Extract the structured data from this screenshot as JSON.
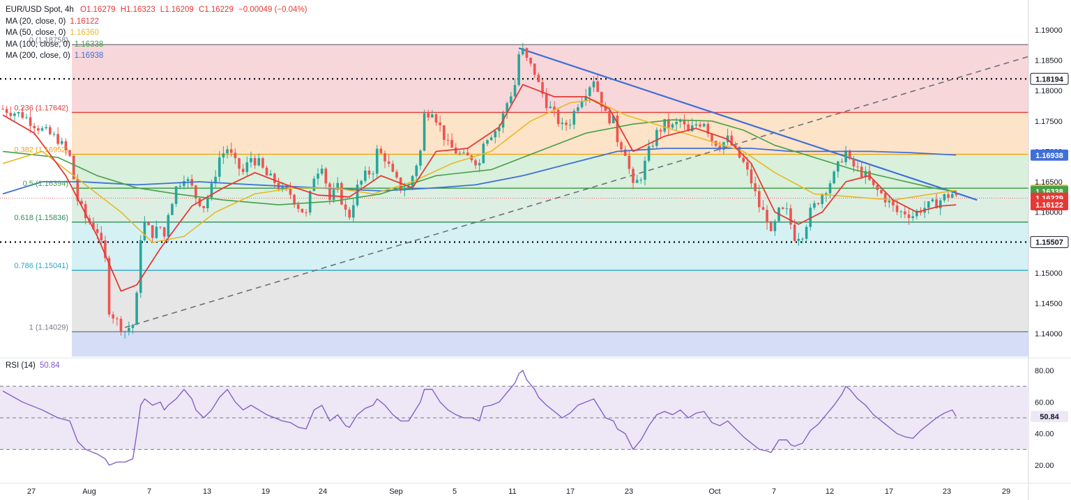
{
  "header": {
    "symbol": "EUR/USD Spot, 4h",
    "open": "O1.16279",
    "high": "H1.16323",
    "low": "L1.16209",
    "close": "C1.16229",
    "change": "−0.00049 (−0.04%)"
  },
  "indicators": [
    {
      "label": "MA (20, close, 0)",
      "value": "1.16122",
      "color": "#e53935"
    },
    {
      "label": "MA (50, close, 0)",
      "value": "1.16360",
      "color": "#e8b923"
    },
    {
      "label": "MA (100, close, 0)",
      "value": "1.16338",
      "color": "#43a047"
    },
    {
      "label": "MA (200, close, 0)",
      "value": "1.16938",
      "color": "#3f6fd8"
    }
  ],
  "rsi": {
    "label": "RSI (14)",
    "value": "50.84",
    "color": "#7e57c2"
  },
  "chart_data": {
    "type": "candlestick",
    "title": "EUR/USD Spot, 4h",
    "price_axis": {
      "ylim": [
        1.137,
        1.1915
      ],
      "ticks": [
        "1.19000",
        "1.18500",
        "1.18000",
        "1.17500",
        "1.17000",
        "1.16500",
        "1.16000",
        "1.15500",
        "1.15000",
        "1.14500",
        "1.14000"
      ]
    },
    "time_axis": {
      "labels": [
        "27",
        "Aug",
        "7",
        "13",
        "19",
        "24",
        "Sep",
        "5",
        "11",
        "17",
        "23",
        "Oct",
        "7",
        "12",
        "17",
        "23",
        "29"
      ]
    },
    "fibonacci": [
      {
        "label": "0 (1.18758)",
        "level": 1.18758,
        "color": "#787b86"
      },
      {
        "label": "0.236 (1.17642)",
        "level": 1.17642,
        "color": "#e53935"
      },
      {
        "label": "0.382 (1.16952)",
        "level": 1.16952,
        "color": "#f0a30a"
      },
      {
        "label": "0.5 (1.16394)",
        "level": 1.16394,
        "color": "#43a047"
      },
      {
        "label": "0.618 (1.15836)",
        "level": 1.15836,
        "color": "#2e8b57"
      },
      {
        "label": "0.786 (1.15041)",
        "level": 1.15041,
        "color": "#26a8c8"
      },
      {
        "label": "1 (1.14029)",
        "level": 1.14029,
        "color": "#787b86"
      }
    ],
    "horizontal_levels": [
      {
        "label": "1.18194",
        "level": 1.18194
      },
      {
        "label": "1.15507",
        "level": 1.15507
      }
    ],
    "price_badges": [
      {
        "label": "1.18194",
        "level": 1.18194,
        "bg": "#ffffff",
        "fg": "#131722",
        "border": "#131722"
      },
      {
        "label": "1.16938",
        "level": 1.16938,
        "bg": "#3f6fd8",
        "fg": "#ffffff"
      },
      {
        "label": "1.16360",
        "level": 1.1636,
        "bg": "#e8b923",
        "fg": "#131722"
      },
      {
        "label": "1.16338",
        "level": 1.16338,
        "bg": "#43a047",
        "fg": "#ffffff"
      },
      {
        "label": "1.16229",
        "level": 1.16229,
        "bg": "#e53935",
        "fg": "#ffffff"
      },
      {
        "label": "1.16122",
        "level": 1.16122,
        "bg": "#e53935",
        "fg": "#ffffff"
      },
      {
        "label": "1.15507",
        "level": 1.15507,
        "bg": "#ffffff",
        "fg": "#131722",
        "border": "#131722"
      }
    ],
    "close_path": [
      [
        0,
        1.177
      ],
      [
        5,
        1.176
      ],
      [
        10,
        1.1735
      ],
      [
        14,
        1.172
      ],
      [
        17,
        1.169
      ],
      [
        19,
        1.162
      ],
      [
        21,
        1.159
      ],
      [
        24,
        1.157
      ],
      [
        26,
        1.152
      ],
      [
        27,
        1.144
      ],
      [
        29,
        1.142
      ],
      [
        31,
        1.1405
      ],
      [
        33,
        1.1415
      ],
      [
        34,
        1.146
      ],
      [
        35,
        1.156
      ],
      [
        36,
        1.158
      ],
      [
        38,
        1.1565
      ],
      [
        40,
        1.1575
      ],
      [
        41,
        1.156
      ],
      [
        42,
        1.16
      ],
      [
        44,
        1.164
      ],
      [
        46,
        1.166
      ],
      [
        48,
        1.164
      ],
      [
        49,
        1.1625
      ],
      [
        51,
        1.161
      ],
      [
        53,
        1.164
      ],
      [
        55,
        1.169
      ],
      [
        57,
        1.1705
      ],
      [
        59,
        1.168
      ],
      [
        61,
        1.1665
      ],
      [
        63,
        1.169
      ],
      [
        65,
        1.168
      ],
      [
        67,
        1.166
      ],
      [
        69,
        1.165
      ],
      [
        71,
        1.1635
      ],
      [
        73,
        1.163
      ],
      [
        75,
        1.161
      ],
      [
        77,
        1.1595
      ],
      [
        79,
        1.166
      ],
      [
        81,
        1.168
      ],
      [
        83,
        1.162
      ],
      [
        85,
        1.164
      ],
      [
        87,
        1.16
      ],
      [
        88,
        1.1595
      ],
      [
        90,
        1.164
      ],
      [
        92,
        1.166
      ],
      [
        94,
        1.167
      ],
      [
        95,
        1.17
      ],
      [
        97,
        1.169
      ],
      [
        99,
        1.166
      ],
      [
        101,
        1.164
      ],
      [
        103,
        1.164
      ],
      [
        104,
        1.166
      ],
      [
        106,
        1.17
      ],
      [
        107,
        1.176
      ],
      [
        109,
        1.177
      ],
      [
        111,
        1.174
      ],
      [
        113,
        1.171
      ],
      [
        115,
        1.17
      ],
      [
        117,
        1.169
      ],
      [
        119,
        1.169
      ],
      [
        121,
        1.168
      ],
      [
        122,
        1.172
      ],
      [
        124,
        1.173
      ],
      [
        126,
        1.174
      ],
      [
        128,
        1.178
      ],
      [
        130,
        1.181
      ],
      [
        131,
        1.186
      ],
      [
        132,
        1.1865
      ],
      [
        133,
        1.185
      ],
      [
        135,
        1.183
      ],
      [
        136,
        1.181
      ],
      [
        138,
        1.178
      ],
      [
        140,
        1.176
      ],
      [
        142,
        1.174
      ],
      [
        144,
        1.175
      ],
      [
        146,
        1.178
      ],
      [
        148,
        1.18
      ],
      [
        150,
        1.182
      ],
      [
        151,
        1.18
      ],
      [
        153,
        1.176
      ],
      [
        155,
        1.175
      ],
      [
        156,
        1.172
      ],
      [
        158,
        1.17
      ],
      [
        160,
        1.164
      ],
      [
        162,
        1.166
      ],
      [
        164,
        1.17
      ],
      [
        166,
        1.173
      ],
      [
        168,
        1.1745
      ],
      [
        170,
        1.174
      ],
      [
        172,
        1.175
      ],
      [
        174,
        1.173
      ],
      [
        176,
        1.1745
      ],
      [
        178,
        1.175
      ],
      [
        180,
        1.172
      ],
      [
        182,
        1.171
      ],
      [
        184,
        1.172
      ],
      [
        186,
        1.17
      ],
      [
        188,
        1.168
      ],
      [
        190,
        1.165
      ],
      [
        192,
        1.161
      ],
      [
        194,
        1.159
      ],
      [
        195,
        1.156
      ],
      [
        197,
        1.16
      ],
      [
        199,
        1.16
      ],
      [
        200,
        1.158
      ],
      [
        201,
        1.156
      ],
      [
        203,
        1.1565
      ],
      [
        205,
        1.16
      ],
      [
        207,
        1.162
      ],
      [
        209,
        1.164
      ],
      [
        211,
        1.166
      ],
      [
        213,
        1.169
      ],
      [
        214,
        1.17
      ],
      [
        215,
        1.168
      ],
      [
        217,
        1.167
      ],
      [
        219,
        1.166
      ],
      [
        221,
        1.164
      ],
      [
        223,
        1.163
      ],
      [
        225,
        1.1615
      ],
      [
        227,
        1.16
      ],
      [
        229,
        1.16
      ],
      [
        231,
        1.1595
      ],
      [
        233,
        1.1605
      ],
      [
        235,
        1.161
      ],
      [
        237,
        1.1615
      ],
      [
        239,
        1.1625
      ],
      [
        241,
        1.163
      ],
      [
        242,
        1.1623
      ]
    ],
    "rsi_path": [
      [
        0,
        67
      ],
      [
        5,
        60
      ],
      [
        10,
        55
      ],
      [
        14,
        50
      ],
      [
        17,
        48
      ],
      [
        19,
        35
      ],
      [
        21,
        30
      ],
      [
        24,
        27
      ],
      [
        26,
        24
      ],
      [
        27,
        20
      ],
      [
        29,
        22
      ],
      [
        31,
        22
      ],
      [
        33,
        24
      ],
      [
        34,
        40
      ],
      [
        35,
        58
      ],
      [
        36,
        62
      ],
      [
        38,
        58
      ],
      [
        40,
        60
      ],
      [
        41,
        55
      ],
      [
        42,
        58
      ],
      [
        44,
        62
      ],
      [
        46,
        68
      ],
      [
        48,
        62
      ],
      [
        49,
        55
      ],
      [
        51,
        50
      ],
      [
        53,
        55
      ],
      [
        55,
        63
      ],
      [
        57,
        68
      ],
      [
        59,
        60
      ],
      [
        61,
        55
      ],
      [
        63,
        58
      ],
      [
        65,
        55
      ],
      [
        67,
        52
      ],
      [
        69,
        50
      ],
      [
        71,
        48
      ],
      [
        73,
        47
      ],
      [
        75,
        44
      ],
      [
        77,
        43
      ],
      [
        79,
        55
      ],
      [
        81,
        58
      ],
      [
        83,
        48
      ],
      [
        85,
        52
      ],
      [
        87,
        45
      ],
      [
        88,
        44
      ],
      [
        90,
        52
      ],
      [
        92,
        56
      ],
      [
        94,
        58
      ],
      [
        95,
        62
      ],
      [
        97,
        58
      ],
      [
        99,
        52
      ],
      [
        101,
        48
      ],
      [
        103,
        48
      ],
      [
        104,
        52
      ],
      [
        106,
        60
      ],
      [
        107,
        68
      ],
      [
        109,
        68
      ],
      [
        111,
        60
      ],
      [
        113,
        55
      ],
      [
        115,
        52
      ],
      [
        117,
        50
      ],
      [
        119,
        50
      ],
      [
        121,
        48
      ],
      [
        122,
        57
      ],
      [
        124,
        58
      ],
      [
        126,
        60
      ],
      [
        128,
        66
      ],
      [
        130,
        72
      ],
      [
        131,
        78
      ],
      [
        132,
        80
      ],
      [
        133,
        74
      ],
      [
        135,
        68
      ],
      [
        136,
        63
      ],
      [
        138,
        58
      ],
      [
        140,
        54
      ],
      [
        142,
        50
      ],
      [
        144,
        53
      ],
      [
        146,
        58
      ],
      [
        148,
        60
      ],
      [
        150,
        62
      ],
      [
        151,
        58
      ],
      [
        153,
        50
      ],
      [
        155,
        48
      ],
      [
        156,
        43
      ],
      [
        158,
        40
      ],
      [
        160,
        30
      ],
      [
        162,
        36
      ],
      [
        164,
        45
      ],
      [
        166,
        52
      ],
      [
        168,
        54
      ],
      [
        170,
        52
      ],
      [
        172,
        55
      ],
      [
        174,
        50
      ],
      [
        176,
        53
      ],
      [
        178,
        54
      ],
      [
        180,
        47
      ],
      [
        182,
        45
      ],
      [
        184,
        48
      ],
      [
        186,
        43
      ],
      [
        188,
        38
      ],
      [
        190,
        34
      ],
      [
        192,
        30
      ],
      [
        194,
        29
      ],
      [
        195,
        28
      ],
      [
        197,
        36
      ],
      [
        199,
        36
      ],
      [
        200,
        33
      ],
      [
        201,
        32
      ],
      [
        203,
        34
      ],
      [
        205,
        42
      ],
      [
        207,
        46
      ],
      [
        209,
        52
      ],
      [
        211,
        58
      ],
      [
        213,
        65
      ],
      [
        214,
        70
      ],
      [
        215,
        68
      ],
      [
        217,
        62
      ],
      [
        219,
        58
      ],
      [
        221,
        52
      ],
      [
        223,
        48
      ],
      [
        225,
        44
      ],
      [
        227,
        40
      ],
      [
        229,
        38
      ],
      [
        231,
        37
      ],
      [
        233,
        42
      ],
      [
        235,
        46
      ],
      [
        237,
        50
      ],
      [
        239,
        53
      ],
      [
        241,
        55
      ],
      [
        242,
        50.84
      ]
    ],
    "ma20_path": [
      [
        0,
        1.176
      ],
      [
        8,
        1.173
      ],
      [
        16,
        1.166
      ],
      [
        24,
        1.156
      ],
      [
        30,
        1.147
      ],
      [
        34,
        1.148
      ],
      [
        40,
        1.154
      ],
      [
        48,
        1.161
      ],
      [
        56,
        1.164
      ],
      [
        64,
        1.1665
      ],
      [
        72,
        1.1645
      ],
      [
        80,
        1.1628
      ],
      [
        88,
        1.1625
      ],
      [
        96,
        1.166
      ],
      [
        104,
        1.164
      ],
      [
        110,
        1.17
      ],
      [
        118,
        1.1705
      ],
      [
        126,
        1.174
      ],
      [
        132,
        1.181
      ],
      [
        140,
        1.179
      ],
      [
        148,
        1.179
      ],
      [
        154,
        1.177
      ],
      [
        160,
        1.17
      ],
      [
        168,
        1.1725
      ],
      [
        176,
        1.1738
      ],
      [
        184,
        1.172
      ],
      [
        190,
        1.168
      ],
      [
        196,
        1.16
      ],
      [
        202,
        1.158
      ],
      [
        208,
        1.16
      ],
      [
        214,
        1.165
      ],
      [
        220,
        1.166
      ],
      [
        226,
        1.162
      ],
      [
        232,
        1.16
      ],
      [
        238,
        1.161
      ],
      [
        242,
        1.1612
      ]
    ],
    "ma50_path": [
      [
        0,
        1.168
      ],
      [
        10,
        1.17
      ],
      [
        20,
        1.165
      ],
      [
        30,
        1.16
      ],
      [
        38,
        1.155
      ],
      [
        46,
        1.156
      ],
      [
        54,
        1.16
      ],
      [
        64,
        1.163
      ],
      [
        74,
        1.164
      ],
      [
        84,
        1.164
      ],
      [
        94,
        1.163
      ],
      [
        104,
        1.165
      ],
      [
        114,
        1.168
      ],
      [
        124,
        1.17
      ],
      [
        134,
        1.175
      ],
      [
        144,
        1.178
      ],
      [
        150,
        1.1785
      ],
      [
        158,
        1.176
      ],
      [
        168,
        1.174
      ],
      [
        178,
        1.172
      ],
      [
        188,
        1.17
      ],
      [
        196,
        1.1665
      ],
      [
        206,
        1.163
      ],
      [
        216,
        1.1625
      ],
      [
        226,
        1.162
      ],
      [
        236,
        1.163
      ],
      [
        242,
        1.1636
      ]
    ],
    "ma100_path": [
      [
        0,
        1.17
      ],
      [
        14,
        1.169
      ],
      [
        24,
        1.166
      ],
      [
        34,
        1.164
      ],
      [
        44,
        1.163
      ],
      [
        56,
        1.162
      ],
      [
        70,
        1.1612
      ],
      [
        84,
        1.1618
      ],
      [
        96,
        1.163
      ],
      [
        110,
        1.166
      ],
      [
        124,
        1.167
      ],
      [
        136,
        1.17
      ],
      [
        148,
        1.173
      ],
      [
        160,
        1.1745
      ],
      [
        170,
        1.1752
      ],
      [
        180,
        1.175
      ],
      [
        188,
        1.1735
      ],
      [
        196,
        1.171
      ],
      [
        206,
        1.169
      ],
      [
        216,
        1.167
      ],
      [
        226,
        1.1655
      ],
      [
        236,
        1.164
      ],
      [
        242,
        1.1634
      ]
    ],
    "ma200_path": [
      [
        0,
        1.163
      ],
      [
        10,
        1.165
      ],
      [
        20,
        1.165
      ],
      [
        34,
        1.1645
      ],
      [
        50,
        1.165
      ],
      [
        64,
        1.1645
      ],
      [
        80,
        1.164
      ],
      [
        96,
        1.1635
      ],
      [
        110,
        1.164
      ],
      [
        120,
        1.1645
      ],
      [
        132,
        1.166
      ],
      [
        144,
        1.168
      ],
      [
        156,
        1.17
      ],
      [
        168,
        1.1705
      ],
      [
        180,
        1.1705
      ],
      [
        190,
        1.1705
      ],
      [
        200,
        1.17
      ],
      [
        210,
        1.17
      ],
      [
        220,
        1.17
      ],
      [
        230,
        1.1698
      ],
      [
        242,
        1.1694
      ]
    ],
    "downtrend_line": [
      [
        131,
        1.187
      ],
      [
        242,
        1.162
      ]
    ],
    "uptrend_line": [
      [
        31,
        1.141
      ],
      [
        270,
        1.1875
      ]
    ],
    "rsi_axis": {
      "ylim": [
        15,
        85
      ],
      "ticks": [
        "80.00",
        "60.00",
        "40.00",
        "20.00"
      ],
      "bands": [
        30,
        50,
        70
      ]
    }
  }
}
